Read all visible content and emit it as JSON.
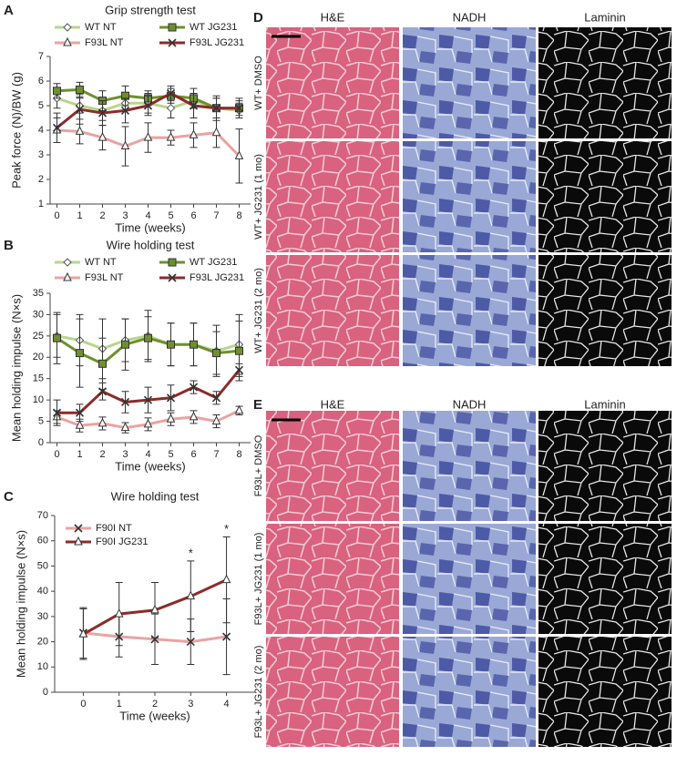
{
  "chart_data": [
    {
      "panel": "A",
      "type": "line",
      "title": "Grip strength test",
      "x_label": "Time (weeks)",
      "y_label": "Peak force (N)/BW (g)",
      "x": [
        0,
        1,
        2,
        3,
        4,
        5,
        6,
        7,
        8
      ],
      "xlim": [
        -0.3,
        8.5
      ],
      "xticks": [
        0,
        1,
        2,
        3,
        4,
        5,
        6,
        7,
        8
      ],
      "ylim": [
        1,
        7
      ],
      "yticks": [
        1,
        2,
        3,
        4,
        5,
        6,
        7
      ],
      "legend": "top",
      "series": [
        {
          "name": "WT NT",
          "color": "#b8d68c",
          "marker": "diamond",
          "values": [
            5.3,
            5.0,
            4.8,
            5.1,
            5.1,
            4.9,
            5.2,
            4.9,
            4.8
          ],
          "errors": [
            0.4,
            0.3,
            0.4,
            0.3,
            0.4,
            0.4,
            0.3,
            0.4,
            0.3
          ]
        },
        {
          "name": "WT JG231",
          "color": "#6f8f2f",
          "marker": "square",
          "values": [
            5.6,
            5.65,
            5.2,
            5.4,
            5.3,
            5.4,
            5.3,
            4.9,
            4.9
          ],
          "errors": [
            0.3,
            0.3,
            0.4,
            0.4,
            0.3,
            0.3,
            0.4,
            0.4,
            0.3
          ]
        },
        {
          "name": "F93L NT",
          "color": "#e9a3a3",
          "marker": "triangle",
          "values": [
            4.0,
            3.95,
            3.7,
            3.35,
            3.7,
            3.7,
            3.8,
            3.9,
            2.95
          ],
          "errors": [
            0.5,
            0.5,
            0.5,
            0.8,
            0.6,
            0.3,
            0.5,
            0.6,
            1.1
          ]
        },
        {
          "name": "F93L JG231",
          "color": "#8c2b2b",
          "marker": "x",
          "values": [
            4.1,
            4.85,
            4.7,
            4.8,
            5.0,
            5.5,
            5.0,
            4.9,
            4.9
          ],
          "errors": [
            0.6,
            0.6,
            0.5,
            0.5,
            0.4,
            0.3,
            0.5,
            0.5,
            0.4
          ]
        }
      ]
    },
    {
      "panel": "B",
      "type": "line",
      "title": "Wire holding test",
      "x_label": "Time (weeks)",
      "y_label": "Mean holding impulse (N×s)",
      "x": [
        0,
        1,
        2,
        3,
        4,
        5,
        6,
        7,
        8
      ],
      "xlim": [
        -0.3,
        8.5
      ],
      "xticks": [
        0,
        1,
        2,
        3,
        4,
        5,
        6,
        7,
        8
      ],
      "ylim": [
        0,
        35
      ],
      "yticks": [
        0,
        5,
        10,
        15,
        20,
        25,
        30,
        35
      ],
      "legend": "top",
      "series": [
        {
          "name": "WT NT",
          "color": "#b8d68c",
          "marker": "diamond",
          "values": [
            25,
            24,
            22,
            24,
            25,
            23,
            23,
            21.5,
            23
          ],
          "errors": [
            5,
            6,
            7,
            5,
            6,
            5,
            5,
            6,
            7
          ]
        },
        {
          "name": "WT JG231",
          "color": "#6f8f2f",
          "marker": "square",
          "values": [
            24.5,
            21,
            18.5,
            23,
            24.5,
            23,
            23,
            21,
            21.5
          ],
          "errors": [
            6,
            8,
            6,
            6,
            5,
            5,
            5,
            5,
            7
          ]
        },
        {
          "name": "F93L NT",
          "color": "#e9a3a3",
          "marker": "triangle",
          "values": [
            6,
            4,
            4.5,
            3.5,
            4.3,
            5.5,
            6,
            5,
            7.5
          ],
          "errors": [
            1.5,
            1.5,
            1.5,
            1.2,
            1.5,
            1.5,
            1.5,
            1.5,
            1
          ]
        },
        {
          "name": "F93L JG231",
          "color": "#8c2b2b",
          "marker": "x",
          "values": [
            7,
            7,
            12,
            9.5,
            10,
            10.5,
            13,
            10.5,
            17
          ],
          "errors": [
            3,
            2,
            2,
            2.5,
            3,
            3,
            1.5,
            1.5,
            1.5
          ]
        }
      ]
    },
    {
      "panel": "C",
      "type": "line",
      "title": "Wire holding test",
      "x_label": "Time (weeks)",
      "y_label": "Mean holding impulse (N×s)",
      "x": [
        0,
        1,
        2,
        3,
        4
      ],
      "xlim": [
        -0.8,
        4.8
      ],
      "xticks": [
        0,
        1,
        2,
        3,
        4
      ],
      "ylim": [
        0,
        70
      ],
      "yticks": [
        0,
        10,
        20,
        30,
        40,
        50,
        60,
        70
      ],
      "legend": "upper left",
      "series": [
        {
          "name": "F90I NT",
          "color": "#e9a3a3",
          "marker": "x",
          "values": [
            23.5,
            22,
            21,
            20,
            22
          ],
          "errors": [
            10,
            8,
            10,
            9,
            15
          ]
        },
        {
          "name": "F90I JG231",
          "color": "#8c2b2b",
          "marker": "triangle",
          "values": [
            23,
            31,
            32.5,
            38,
            44.5
          ],
          "errors": [
            10,
            12.5,
            11,
            14,
            17
          ]
        }
      ],
      "annotations": [
        {
          "text": "*",
          "x": 3
        },
        {
          "text": "*",
          "x": 4
        }
      ]
    }
  ],
  "image_panels": [
    {
      "panel": "D",
      "columns": [
        "H&E",
        "NADH",
        "Laminin"
      ],
      "rows": [
        "WT+ DMSO",
        "WT+ JG231 (1 mo)",
        "WT+ JG231 (2 mo)"
      ]
    },
    {
      "panel": "E",
      "columns": [
        "H&E",
        "NADH",
        "Laminin"
      ],
      "rows": [
        "F93L+ DMSO",
        "F93L+ JG231 (1 mo)",
        "F93L+ JG231 (2 mo)"
      ]
    }
  ]
}
